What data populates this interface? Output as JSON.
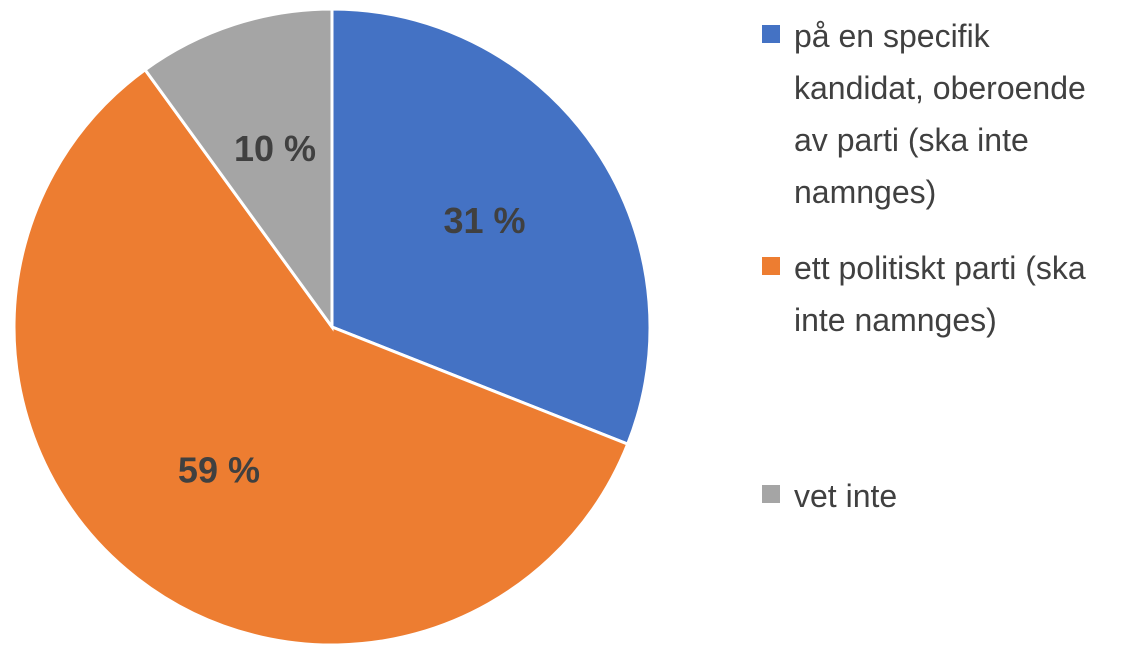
{
  "chart_data": {
    "type": "pie",
    "categories": [
      "på en specifik kandidat, oberoende av parti (ska inte namnges)",
      "ett politiskt parti (ska inte namnges)",
      "vet inte"
    ],
    "values": [
      31,
      59,
      10
    ],
    "value_labels": [
      "31 %",
      "59 %",
      "10 %"
    ],
    "colors": [
      "#4472c4",
      "#ed7d31",
      "#a5a5a5"
    ],
    "legend": "right"
  }
}
